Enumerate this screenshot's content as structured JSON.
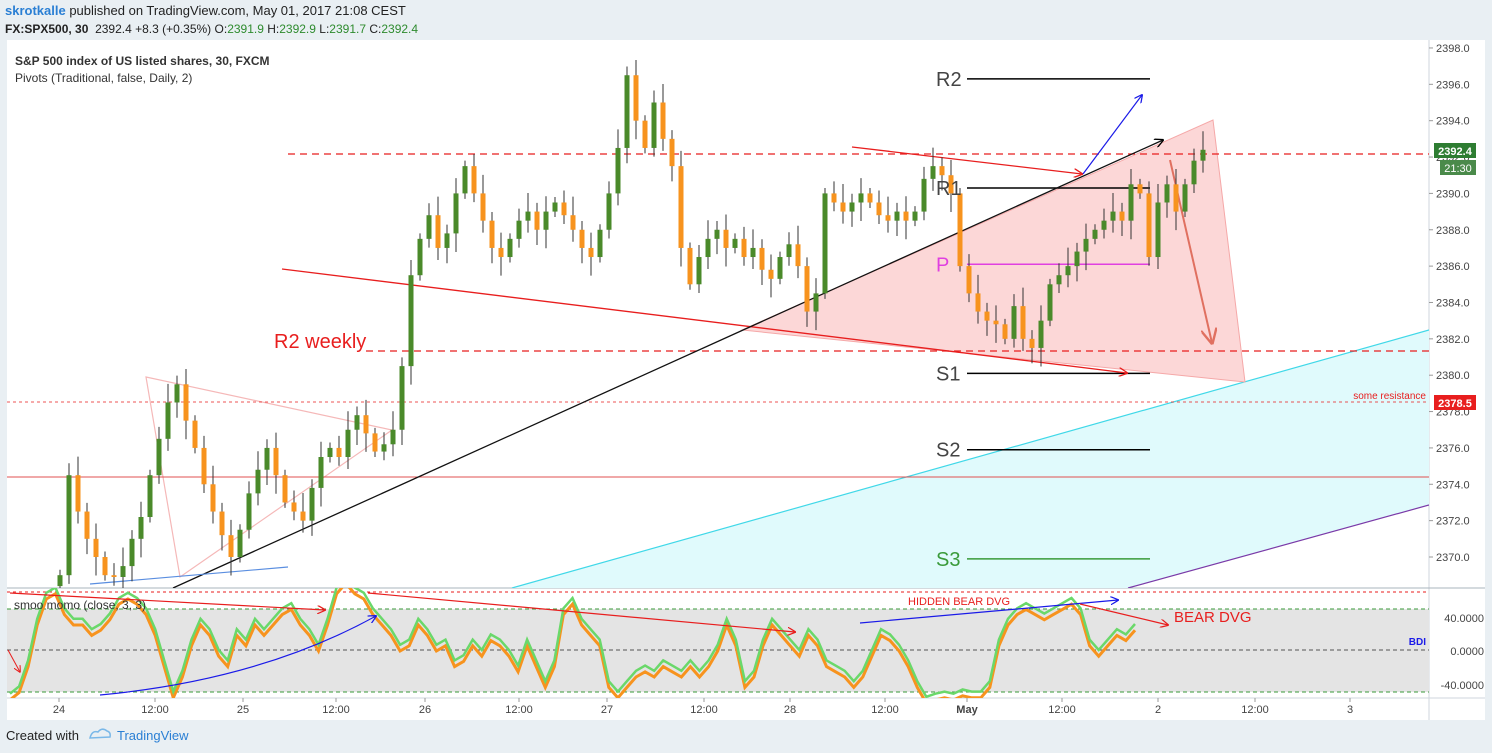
{
  "header": {
    "author": "skrotkalle",
    "published_text": " published on TradingView.com, May 01, 2017 21:08 CEST",
    "symbol": "FX:SPX500, 30",
    "last": "2392.4",
    "change": "+8.3 (+0.35%)",
    "o_label": "O:",
    "o": "2391.9",
    "h_label": "H:",
    "h": "2392.9",
    "l_label": "L:",
    "l": "2391.7",
    "c_label": "C:",
    "c": "2392.4"
  },
  "footer": {
    "created_with": "Created with",
    "brand": "TradingView"
  },
  "colors": {
    "up": "#4a8a2a",
    "down": "#f7931e",
    "pivot_black": "#000000",
    "pivot_p": "#e040e0",
    "pivot_s3": "#3a9a3a",
    "trend_red": "#e81e1e",
    "resistance": "#e81e1e"
  },
  "chart_data": {
    "type": "candlestick",
    "title": "S&P 500 index of US listed shares, 30, FXCM",
    "indicator_label": "Pivots (Traditional, false, Daily, 2)",
    "ylim": [
      2368.2,
      2398.3
    ],
    "y_ticks": [
      "2370.0",
      "2372.0",
      "2374.0",
      "2376.0",
      "2378.0",
      "2380.0",
      "2382.0",
      "2384.0",
      "2386.0",
      "2388.0",
      "2390.0",
      "2392.0",
      "2394.0",
      "2396.0",
      "2398.0"
    ],
    "x_ticks": [
      "24",
      "12:00",
      "25",
      "12:00",
      "26",
      "12:00",
      "27",
      "12:00",
      "28",
      "12:00",
      "May",
      "12:00",
      "2",
      "12:00",
      "3"
    ],
    "price_label": "2392.4",
    "countdown_label": "21:30",
    "resistance_label": "2378.5",
    "resistance_text": "some resistance",
    "r2_weekly_label": "R2 weekly",
    "pivot_levels": [
      {
        "name": "R2",
        "value": 2396.3
      },
      {
        "name": "R1",
        "value": 2390.3
      },
      {
        "name": "P",
        "value": 2386.1
      },
      {
        "name": "S1",
        "value": 2380.1
      },
      {
        "name": "S2",
        "value": 2375.9
      },
      {
        "name": "S3",
        "value": 2369.9
      }
    ],
    "dashed_resistance_levels": [
      2392.2,
      2381.3,
      2378.5
    ],
    "solid_support_level": 2374.4,
    "series": [
      {
        "name": "close",
        "values": [
          2369.0,
          2374.5,
          2372.5,
          2371.0,
          2370.0,
          2369.0,
          2368.9,
          2369.5,
          2371.0,
          2372.2,
          2374.5,
          2376.5,
          2378.5,
          2379.5,
          2377.5,
          2376.0,
          2374.0,
          2372.5,
          2371.2,
          2370.0,
          2371.5,
          2373.5,
          2374.8,
          2376.0,
          2374.5,
          2373.0,
          2372.5,
          2372.0,
          2373.8,
          2375.5,
          2376.0,
          2375.5,
          2377.0,
          2377.8,
          2376.8,
          2375.8,
          2376.2,
          2377.0,
          2380.5,
          2385.5,
          2387.5,
          2388.8,
          2387.0,
          2387.8,
          2390.0,
          2391.5,
          2390.0,
          2388.5,
          2387.0,
          2386.5,
          2387.5,
          2388.5,
          2389.0,
          2388.0,
          2389.0,
          2389.5,
          2388.8,
          2388.0,
          2387.0,
          2386.5,
          2388.0,
          2390.0,
          2392.5,
          2396.5,
          2394.0,
          2392.5,
          2395.0,
          2393.0,
          2391.5,
          2387.0,
          2385.0,
          2386.5,
          2387.5,
          2388.0,
          2387.0,
          2387.5,
          2386.5,
          2387.0,
          2385.8,
          2385.3,
          2386.5,
          2387.2,
          2386.0,
          2383.5,
          2384.5,
          2390.0,
          2389.5,
          2389.0,
          2389.5,
          2390.0,
          2389.5,
          2388.8,
          2388.5,
          2389.0,
          2388.5,
          2389.0,
          2390.8,
          2391.5,
          2391.0,
          2390.0,
          2386.0,
          2384.5,
          2383.5,
          2383.0,
          2382.8,
          2382.0,
          2383.8,
          2382.0,
          2381.5,
          2383.0,
          2385.0,
          2385.5,
          2386.0,
          2386.8,
          2387.5,
          2388.0,
          2388.5,
          2389.0,
          2388.5,
          2390.5,
          2390.0,
          2386.5,
          2389.5,
          2390.5,
          2389.0,
          2390.5,
          2391.8,
          2392.4
        ]
      }
    ],
    "oscillator": {
      "label": "smoo momo (close, 3, 3)",
      "ylim": [
        -50,
        76
      ],
      "y_ticks": [
        "40.0000",
        "0.0000",
        "-40.0000"
      ],
      "level_label": "BDI",
      "values": [
        -42,
        -35,
        -10,
        30,
        55,
        60,
        40,
        30,
        30,
        20,
        25,
        35,
        50,
        55,
        50,
        40,
        20,
        -10,
        -40,
        -20,
        10,
        30,
        20,
        0,
        -10,
        20,
        10,
        30,
        20,
        30,
        40,
        45,
        30,
        20,
        5,
        30,
        60,
        70,
        60,
        55,
        40,
        30,
        20,
        5,
        10,
        30,
        20,
        5,
        10,
        -10,
        -5,
        10,
        0,
        15,
        10,
        0,
        -15,
        10,
        -10,
        -30,
        -10,
        40,
        50,
        30,
        20,
        10,
        -30,
        -40,
        -30,
        -20,
        -15,
        -20,
        -10,
        -15,
        -20,
        -10,
        -20,
        -10,
        5,
        30,
        10,
        -30,
        -20,
        10,
        30,
        20,
        10,
        0,
        20,
        10,
        -10,
        -15,
        -20,
        -30,
        -20,
        0,
        20,
        15,
        5,
        -10,
        -30,
        -45,
        -42,
        -40,
        -42,
        -38,
        -40,
        -40,
        -30,
        10,
        30,
        40,
        45,
        40,
        35,
        40,
        45,
        50,
        40,
        10,
        0,
        10,
        20,
        15,
        25
      ]
    },
    "annotations": [
      "HIDDEN BEAR DVG",
      "BEAR DVG"
    ]
  }
}
